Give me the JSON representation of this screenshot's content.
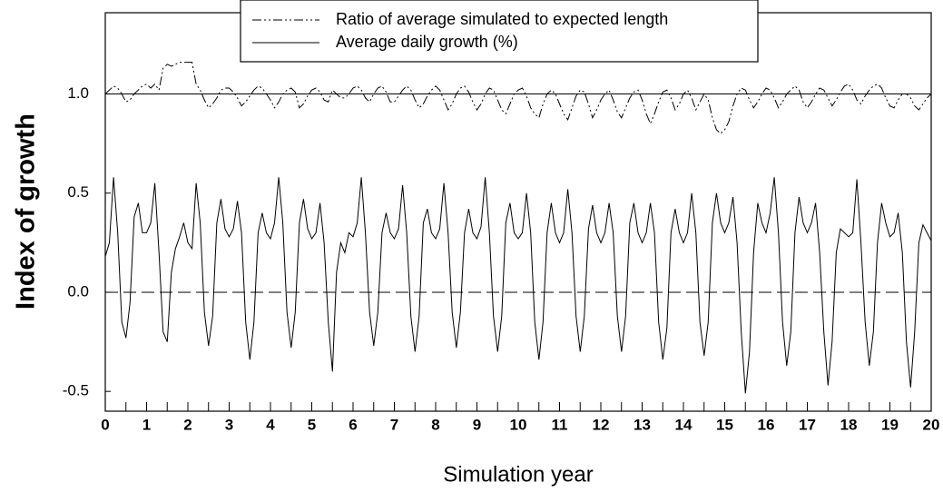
{
  "chart_data": {
    "type": "line",
    "xlabel": "Simulation year",
    "ylabel": "Index of growth",
    "x": [
      0,
      0.1,
      0.2,
      0.3,
      0.4,
      0.5,
      0.6,
      0.7,
      0.8,
      0.9,
      1,
      1.1,
      1.2,
      1.3,
      1.4,
      1.5,
      1.6,
      1.7,
      1.8,
      1.9,
      2,
      2.1,
      2.2,
      2.3,
      2.4,
      2.5,
      2.6,
      2.7,
      2.8,
      2.9,
      3,
      3.1,
      3.2,
      3.3,
      3.4,
      3.5,
      3.6,
      3.7,
      3.8,
      3.9,
      4,
      4.1,
      4.2,
      4.3,
      4.4,
      4.5,
      4.6,
      4.7,
      4.8,
      4.9,
      5,
      5.1,
      5.2,
      5.3,
      5.4,
      5.5,
      5.6,
      5.7,
      5.8,
      5.9,
      6,
      6.1,
      6.2,
      6.3,
      6.4,
      6.5,
      6.6,
      6.7,
      6.8,
      6.9,
      7,
      7.1,
      7.2,
      7.3,
      7.4,
      7.5,
      7.6,
      7.7,
      7.8,
      7.9,
      8,
      8.1,
      8.2,
      8.3,
      8.4,
      8.5,
      8.6,
      8.7,
      8.8,
      8.9,
      9,
      9.1,
      9.2,
      9.3,
      9.4,
      9.5,
      9.6,
      9.7,
      9.8,
      9.9,
      10,
      10.1,
      10.2,
      10.3,
      10.4,
      10.5,
      10.6,
      10.7,
      10.8,
      10.9,
      11,
      11.1,
      11.2,
      11.3,
      11.4,
      11.5,
      11.6,
      11.7,
      11.8,
      11.9,
      12,
      12.1,
      12.2,
      12.3,
      12.4,
      12.5,
      12.6,
      12.7,
      12.8,
      12.9,
      13,
      13.1,
      13.2,
      13.3,
      13.4,
      13.5,
      13.6,
      13.7,
      13.8,
      13.9,
      14,
      14.1,
      14.2,
      14.3,
      14.4,
      14.5,
      14.6,
      14.7,
      14.8,
      14.9,
      15,
      15.1,
      15.2,
      15.3,
      15.4,
      15.5,
      15.6,
      15.7,
      15.8,
      15.9,
      16,
      16.1,
      16.2,
      16.3,
      16.4,
      16.5,
      16.6,
      16.7,
      16.8,
      16.9,
      17,
      17.1,
      17.2,
      17.3,
      17.4,
      17.5,
      17.6,
      17.7,
      17.8,
      17.9,
      18,
      18.1,
      18.2,
      18.3,
      18.4,
      18.5,
      18.6,
      18.7,
      18.8,
      18.9,
      19,
      19.1,
      19.2,
      19.3,
      19.4,
      19.5,
      19.6,
      19.7,
      19.8,
      19.9,
      20
    ],
    "series": [
      {
        "name": "Ratio of average simulated to expected length",
        "color": "#000000",
        "dash": "dashdotdot",
        "values": [
          1.0,
          1.02,
          1.04,
          1.03,
          1.0,
          0.96,
          0.97,
          1.0,
          1.02,
          1.04,
          1.05,
          1.03,
          1.05,
          1.02,
          1.13,
          1.15,
          1.14,
          1.15,
          1.16,
          1.16,
          1.16,
          1.16,
          1.05,
          1.02,
          0.97,
          0.93,
          0.95,
          0.98,
          1.02,
          1.03,
          1.03,
          1.01,
          0.98,
          0.94,
          0.96,
          0.99,
          1.02,
          1.04,
          1.03,
          1.0,
          0.97,
          0.93,
          0.96,
          1.0,
          1.02,
          1.03,
          1.01,
          0.93,
          0.95,
          0.99,
          1.02,
          1.03,
          1.01,
          0.97,
          0.96,
          1.02,
          1.0,
          0.98,
          0.98,
          1.0,
          1.03,
          1.04,
          1.02,
          0.98,
          0.96,
          1.0,
          1.03,
          1.04,
          1.01,
          0.96,
          0.96,
          0.99,
          1.02,
          1.04,
          1.02,
          0.97,
          0.93,
          0.95,
          0.99,
          1.02,
          1.04,
          1.02,
          0.97,
          0.92,
          0.95,
          1.0,
          1.03,
          1.04,
          1.01,
          0.96,
          0.92,
          0.95,
          1.0,
          1.03,
          1.02,
          0.97,
          0.92,
          0.9,
          0.95,
          1.0,
          1.02,
          1.03,
          0.99,
          0.93,
          0.9,
          0.88,
          0.95,
          1.0,
          1.02,
          1.0,
          0.95,
          0.9,
          0.87,
          0.93,
          0.99,
          1.02,
          1.01,
          0.95,
          0.88,
          0.92,
          0.97,
          1.0,
          1.02,
          0.97,
          0.91,
          0.88,
          0.93,
          0.98,
          1.01,
          1.02,
          0.97,
          0.9,
          0.85,
          0.9,
          0.96,
          1.01,
          1.02,
          0.98,
          0.92,
          0.95,
          1.0,
          1.02,
          0.98,
          0.92,
          0.96,
          1.0,
          0.97,
          0.88,
          0.82,
          0.8,
          0.82,
          0.86,
          0.94,
          1.0,
          1.03,
          1.02,
          0.97,
          0.93,
          0.96,
          1.0,
          1.03,
          1.02,
          0.98,
          0.93,
          0.96,
          1.0,
          1.02,
          1.04,
          1.02,
          0.96,
          0.93,
          0.96,
          1.0,
          1.03,
          1.02,
          0.98,
          0.94,
          0.97,
          1.01,
          1.04,
          1.05,
          1.02,
          0.97,
          0.95,
          0.99,
          1.02,
          1.04,
          1.05,
          1.03,
          0.98,
          0.94,
          0.93,
          0.97,
          1.0,
          1.0,
          0.98,
          0.94,
          0.92,
          0.95,
          0.98,
          1.0
        ]
      },
      {
        "name": "Average daily growth (%)",
        "color": "#000000",
        "dash": "solid",
        "values": [
          0.18,
          0.25,
          0.58,
          0.3,
          -0.15,
          -0.23,
          -0.05,
          0.38,
          0.45,
          0.3,
          0.3,
          0.35,
          0.55,
          0.2,
          -0.2,
          -0.25,
          0.1,
          0.22,
          0.28,
          0.35,
          0.25,
          0.22,
          0.55,
          0.35,
          -0.1,
          -0.27,
          -0.12,
          0.35,
          0.47,
          0.32,
          0.28,
          0.32,
          0.46,
          0.3,
          -0.15,
          -0.34,
          -0.15,
          0.3,
          0.4,
          0.3,
          0.27,
          0.35,
          0.58,
          0.35,
          -0.1,
          -0.28,
          -0.1,
          0.35,
          0.47,
          0.32,
          0.27,
          0.3,
          0.45,
          0.25,
          -0.15,
          -0.4,
          0.1,
          0.25,
          0.2,
          0.3,
          0.28,
          0.35,
          0.58,
          0.3,
          -0.1,
          -0.27,
          -0.1,
          0.3,
          0.4,
          0.3,
          0.27,
          0.32,
          0.54,
          0.3,
          -0.12,
          -0.3,
          -0.12,
          0.35,
          0.42,
          0.3,
          0.27,
          0.32,
          0.55,
          0.3,
          -0.1,
          -0.28,
          -0.1,
          0.3,
          0.42,
          0.3,
          0.27,
          0.33,
          0.58,
          0.3,
          -0.12,
          -0.3,
          -0.12,
          0.35,
          0.45,
          0.3,
          0.27,
          0.3,
          0.5,
          0.3,
          -0.15,
          -0.34,
          -0.15,
          0.3,
          0.45,
          0.3,
          0.25,
          0.3,
          0.52,
          0.3,
          -0.12,
          -0.3,
          -0.12,
          0.32,
          0.44,
          0.3,
          0.25,
          0.3,
          0.45,
          0.3,
          -0.12,
          -0.3,
          -0.12,
          0.35,
          0.45,
          0.3,
          0.25,
          0.3,
          0.45,
          0.3,
          -0.15,
          -0.34,
          -0.18,
          0.3,
          0.42,
          0.3,
          0.25,
          0.3,
          0.5,
          0.3,
          -0.15,
          -0.32,
          -0.15,
          0.35,
          0.5,
          0.35,
          0.3,
          0.35,
          0.48,
          0.25,
          -0.2,
          -0.51,
          -0.3,
          0.2,
          0.45,
          0.35,
          0.3,
          0.4,
          0.58,
          0.3,
          -0.15,
          -0.37,
          -0.2,
          0.3,
          0.48,
          0.35,
          0.3,
          0.35,
          0.45,
          0.2,
          -0.2,
          -0.47,
          -0.25,
          0.2,
          0.32,
          0.3,
          0.28,
          0.3,
          0.57,
          0.25,
          -0.15,
          -0.37,
          -0.2,
          0.25,
          0.45,
          0.35,
          0.28,
          0.3,
          0.4,
          0.2,
          -0.25,
          -0.48,
          -0.2,
          0.25,
          0.34,
          0.3,
          0.26
        ]
      }
    ],
    "reference_lines": [
      {
        "value": 1,
        "dash": "solid"
      },
      {
        "value": 0,
        "dash": "dashed"
      }
    ],
    "xlim": [
      0,
      20
    ],
    "xticks": [
      0,
      1,
      2,
      3,
      4,
      5,
      6,
      7,
      8,
      9,
      10,
      11,
      12,
      13,
      14,
      15,
      16,
      17,
      18,
      19,
      20
    ],
    "xminorticks": [
      0.5,
      1.5,
      2.5,
      3.5,
      4.5,
      5.5,
      6.5,
      7.5,
      8.5,
      9.5,
      10.5,
      11.5,
      12.5,
      13.5,
      14.5,
      15.5,
      16.5,
      17.5,
      18.5,
      19.5
    ],
    "ylim": [
      -0.6,
      1.41
    ],
    "yticks": [
      -0.5,
      {
        "value": 0,
        "label": "0.0"
      },
      0.5,
      {
        "value": 1,
        "label": "1.0"
      }
    ],
    "legend": "top"
  }
}
